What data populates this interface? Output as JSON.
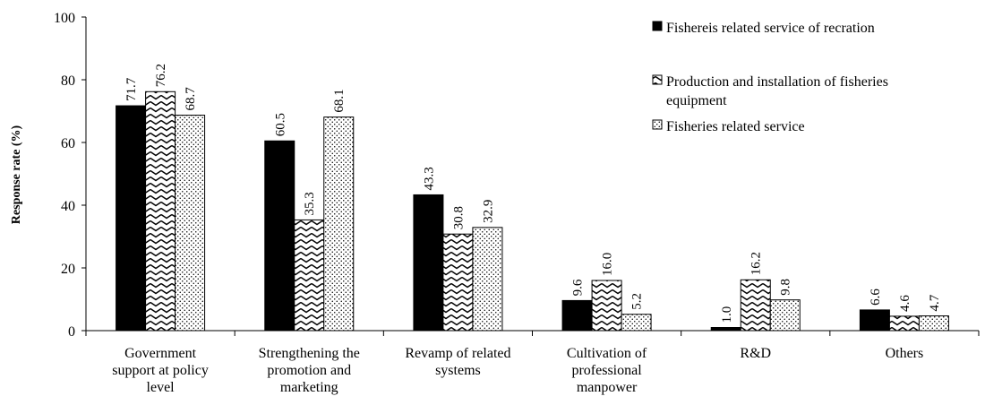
{
  "chart_data": {
    "type": "bar",
    "ylabel": "Response rate (%)",
    "ylim": [
      0,
      100
    ],
    "y_ticks": [
      0,
      20,
      40,
      60,
      80,
      100
    ],
    "grid": false,
    "legend_position": "top-right",
    "categories": [
      [
        "Government",
        "support at policy",
        "level"
      ],
      [
        "Strengthening the",
        "promotion and",
        "marketing"
      ],
      [
        "Revamp of related",
        "systems"
      ],
      [
        "Cultivation of",
        "professional",
        "manpower"
      ],
      [
        "R&D"
      ],
      [
        "Others"
      ]
    ],
    "series": [
      {
        "name": "Fishereis related service  of recration",
        "legend_lines": [
          "Fishereis related service  of recration"
        ],
        "pattern": "solid-black",
        "values": [
          71.7,
          60.5,
          43.3,
          9.6,
          1.0,
          6.6
        ],
        "value_labels": [
          "71.7",
          "60.5",
          "43.3",
          "9.6",
          "1.0",
          "6.6"
        ]
      },
      {
        "name": "Production and installation of fisheries equipment",
        "legend_lines": [
          "Production and installation of fisheries",
          "equipment"
        ],
        "pattern": "zigzag",
        "values": [
          76.2,
          35.3,
          30.8,
          16.0,
          16.2,
          4.6
        ],
        "value_labels": [
          "76.2",
          "35.3",
          "30.8",
          "16.0",
          "16.2",
          "4.6"
        ]
      },
      {
        "name": "Fisheries related service",
        "legend_lines": [
          "Fisheries related service"
        ],
        "pattern": "dots",
        "values": [
          68.7,
          68.1,
          32.9,
          5.2,
          9.8,
          4.7
        ],
        "value_labels": [
          "68.7",
          "68.1",
          "32.9",
          "5.2",
          "9.8",
          "4.7"
        ]
      }
    ]
  }
}
